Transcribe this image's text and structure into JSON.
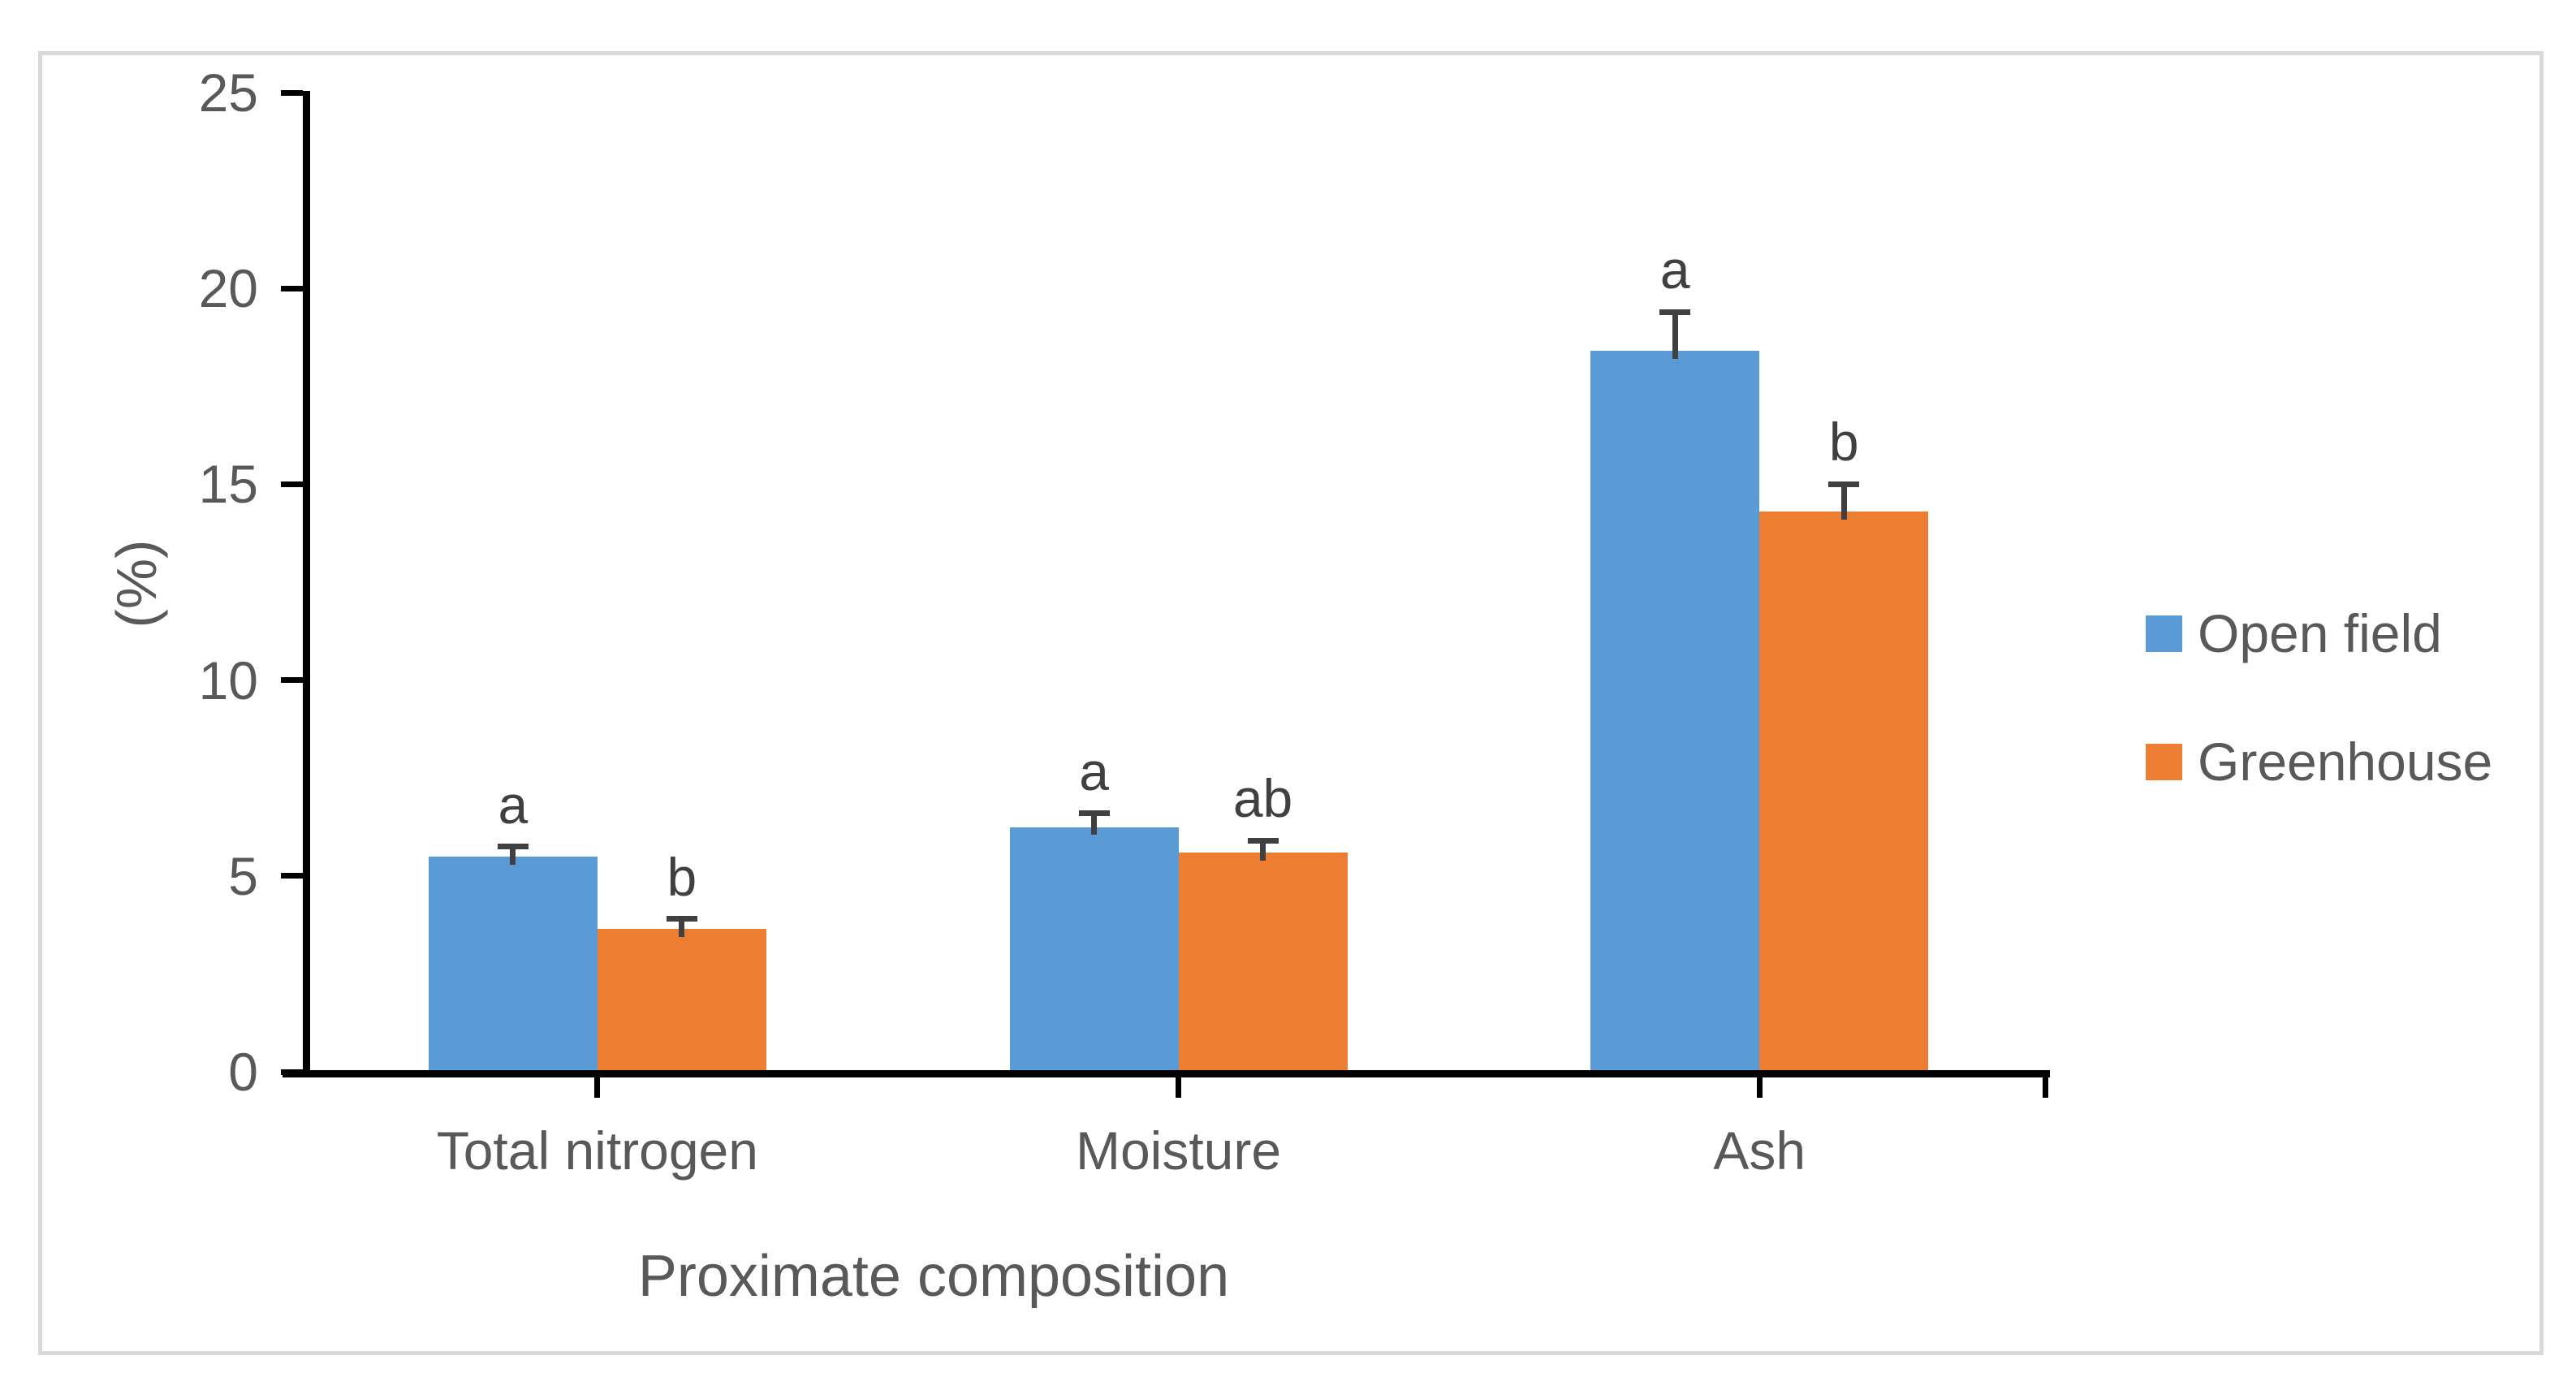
{
  "chart_data": {
    "type": "bar",
    "title": "",
    "categories": [
      "Total nitrogen",
      "Moisture",
      "Ash"
    ],
    "series": [
      {
        "name": "Open field",
        "color": "#5B9BD5",
        "values": [
          5.5,
          6.25,
          18.4
        ],
        "errors": [
          0.25,
          0.35,
          1.0
        ],
        "sig_letters": [
          "a",
          "a",
          "a"
        ]
      },
      {
        "name": "Greenhouse",
        "color": "#ED7D31",
        "values": [
          3.65,
          5.6,
          14.3
        ],
        "errors": [
          0.25,
          0.3,
          0.7
        ],
        "sig_letters": [
          "b",
          "ab",
          "b"
        ]
      }
    ],
    "xlabel": "Proximate composition",
    "ylabel": "(%)",
    "ylim": [
      0,
      25
    ],
    "ytick_step": 5,
    "ytick_labels": [
      "0",
      "5",
      "10",
      "15",
      "20",
      "25"
    ],
    "grid": false,
    "legend_position": "right"
  },
  "colors": {
    "axis": "#000000",
    "text": "#595959",
    "error_and_letters": "#404040",
    "frame_border": "#D9D9D9",
    "background": "#FFFFFF"
  }
}
